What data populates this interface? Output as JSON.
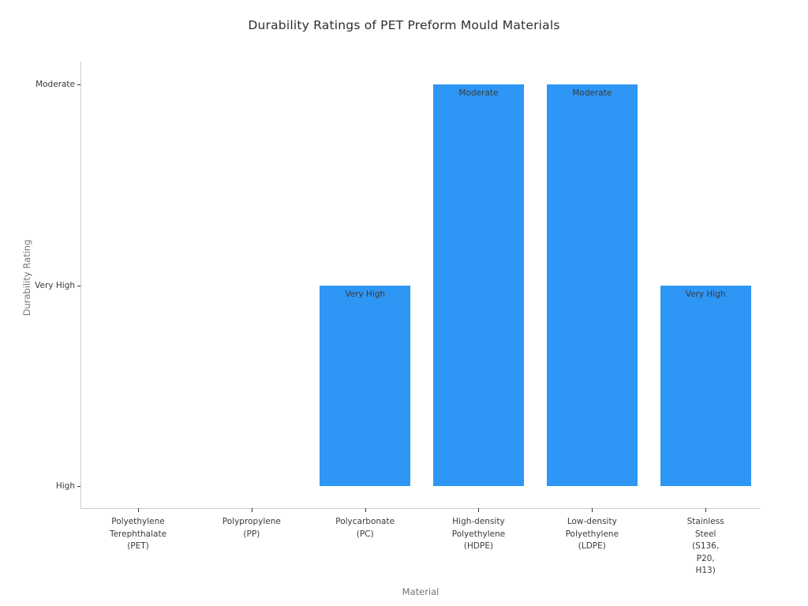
{
  "chart_data": {
    "type": "bar",
    "title": "Durability Ratings of PET Preform Mould Materials",
    "xlabel": "Material",
    "ylabel": "Durability Rating",
    "categories": [
      "Polyethylene Terephthalate (PET)",
      "Polypropylene (PP)",
      "Polycarbonate (PC)",
      "High-density Polyethylene (HDPE)",
      "Low-density Polyethylene (LDPE)",
      "Stainless Steel (S136, P20, H13)"
    ],
    "xtick_lines": [
      [
        "Polyethylene",
        "Terephthalate",
        "(PET)"
      ],
      [
        "Polypropylene",
        "(PP)"
      ],
      [
        "Polycarbonate",
        "(PC)"
      ],
      [
        "High-density",
        "Polyethylene",
        "(HDPE)"
      ],
      [
        "Low-density",
        "Polyethylene",
        "(LDPE)"
      ],
      [
        "Stainless",
        "Steel",
        "(S136,",
        "P20,",
        "H13)"
      ]
    ],
    "values": [
      "High",
      "High",
      "Very High",
      "Moderate",
      "Moderate",
      "Very High"
    ],
    "numeric_values": [
      0,
      0,
      1,
      2,
      2,
      1
    ],
    "bar_labels": [
      "",
      "",
      "Very High",
      "Moderate",
      "Moderate",
      "Very High"
    ],
    "ytick_labels": [
      "High",
      "Very High",
      "Moderate"
    ],
    "ytick_values": [
      0,
      1,
      2
    ],
    "ylim": [
      -0.11,
      2.11
    ],
    "grid": false,
    "legend": false,
    "colors": {
      "bar": "#2E96F5",
      "bar_label_text": "#3a3a3a",
      "tick_label_text": "#3a3a3a",
      "axis_label_text": "#757575",
      "title_text": "#2e2e2e",
      "spine": "#cccccc",
      "tick_mark": "#333333",
      "background": "#ffffff"
    }
  }
}
